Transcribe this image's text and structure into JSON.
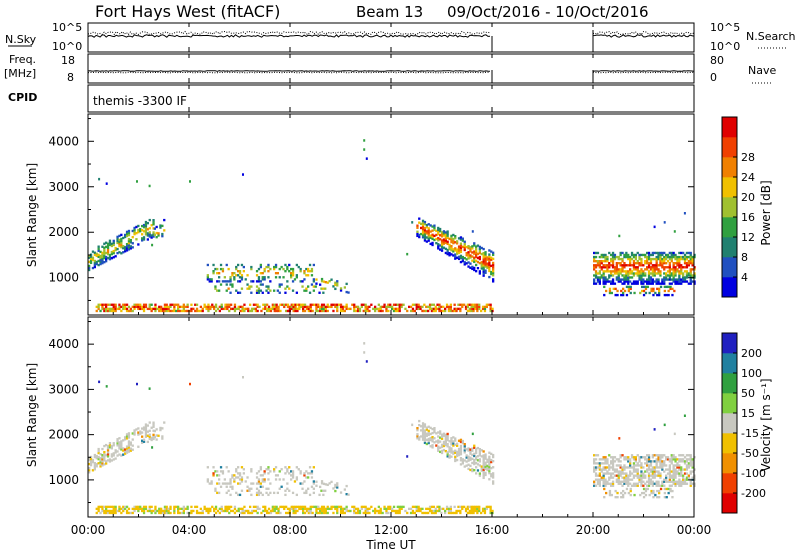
{
  "header": {
    "radar": "Fort Hays West (fitACF)",
    "beam": "Beam 13",
    "dates": "09/Oct/2016 - 10/Oct/2016"
  },
  "chart_data": [
    {
      "type": "line",
      "panel": "noise",
      "left_label": "N.Sky",
      "left_ticks": [
        "10^5",
        "10^0"
      ],
      "right_label": "N.Search",
      "right_ticks": [
        "10^5",
        "10^0"
      ],
      "coverage_hours": [
        [
          0,
          16
        ],
        [
          20,
          24
        ]
      ]
    },
    {
      "type": "line",
      "panel": "frequency",
      "left_label_top": "Freq.",
      "left_label_bottom": "[MHz]",
      "left_ticks": [
        "18",
        "8"
      ],
      "right_label": "Nave",
      "right_ticks": [
        "80",
        "0"
      ],
      "coverage_hours": [
        [
          0,
          16
        ],
        [
          20,
          24
        ]
      ]
    },
    {
      "type": "table",
      "panel": "cpid",
      "label": "CPID",
      "text": "themis -3300 IF"
    },
    {
      "type": "heatmap",
      "panel": "power",
      "ylabel": "Slant Range [km]",
      "yticks": [
        "1000",
        "2000",
        "3000",
        "4000"
      ],
      "ylim": [
        180,
        4600
      ],
      "colorbar_label": "Power [dB]",
      "colorbar_ticks": [
        "4",
        "8",
        "12",
        "16",
        "20",
        "24",
        "28"
      ],
      "colorbar_range": [
        0,
        32
      ],
      "colors": [
        "#0000e0",
        "#2050c0",
        "#208070",
        "#30a040",
        "#a0c030",
        "#f0c000",
        "#f08000",
        "#f04000",
        "#e00000"
      ],
      "data_gap_hours": [
        16,
        20
      ]
    },
    {
      "type": "heatmap",
      "panel": "velocity",
      "ylabel": "Slant Range [km]",
      "yticks": [
        "1000",
        "2000",
        "3000",
        "4000"
      ],
      "ylim": [
        180,
        4600
      ],
      "xlabel": "Time UT",
      "xticks": [
        "00:00",
        "04:00",
        "08:00",
        "12:00",
        "16:00",
        "20:00",
        "00:00"
      ],
      "xlim_hours": [
        0,
        24
      ],
      "colorbar_label": "Velocity [m s⁻¹]",
      "colorbar_ticks": [
        "200",
        "100",
        "50",
        "15",
        "-15",
        "-50",
        "-100",
        "-200"
      ],
      "colors": [
        "#2020c0",
        "#2080a0",
        "#30a040",
        "#80d040",
        "#c8c8c0",
        "#f0c000",
        "#f09000",
        "#f04000",
        "#e00000"
      ],
      "data_gap_hours": [
        16,
        20
      ]
    }
  ]
}
